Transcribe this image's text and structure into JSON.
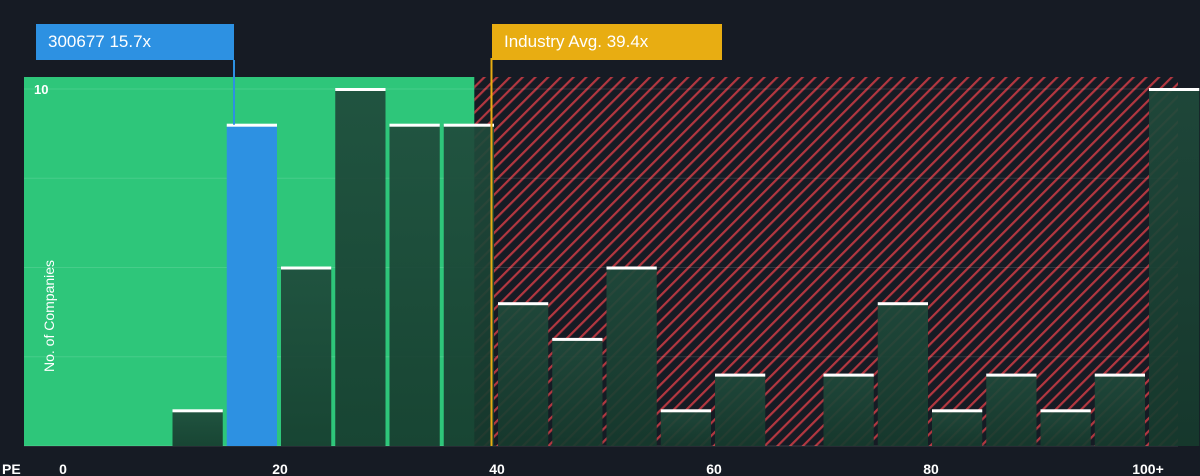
{
  "chart_data": {
    "type": "bar",
    "xlabel": "PE",
    "ylabel": "No. of Companies",
    "x_ticks": [
      "0",
      "20",
      "40",
      "60",
      "80",
      "100+"
    ],
    "x_tick_values": [
      0,
      20,
      40,
      60,
      80,
      100
    ],
    "y_ticks": [
      "10"
    ],
    "y_tick_values": [
      10
    ],
    "ylim": [
      0,
      10
    ],
    "xlim": [
      0,
      102
    ],
    "bin_width": 5,
    "bins": [
      {
        "start": 10,
        "value": 1
      },
      {
        "start": 15,
        "value": 9,
        "highlight": "company"
      },
      {
        "start": 20,
        "value": 5
      },
      {
        "start": 25,
        "value": 10
      },
      {
        "start": 30,
        "value": 9
      },
      {
        "start": 35,
        "value": 9
      },
      {
        "start": 40,
        "value": 4
      },
      {
        "start": 45,
        "value": 3
      },
      {
        "start": 50,
        "value": 5
      },
      {
        "start": 55,
        "value": 1
      },
      {
        "start": 60,
        "value": 2
      },
      {
        "start": 70,
        "value": 2
      },
      {
        "start": 75,
        "value": 4
      },
      {
        "start": 80,
        "value": 1
      },
      {
        "start": 85,
        "value": 2
      },
      {
        "start": 90,
        "value": 1
      },
      {
        "start": 95,
        "value": 2
      },
      {
        "start": 100,
        "value": 10
      }
    ],
    "fair_range_end": 38,
    "company": {
      "label": "300677 15.7x",
      "value": 15.7
    },
    "industry": {
      "label": "Industry Avg. 39.4x",
      "value": 39.4
    },
    "grid": true,
    "colors": {
      "background": "#161b24",
      "fair_zone": "#2ec67a",
      "bar": "#1f4a3b",
      "company_bar": "#2d91e2",
      "over_zone": "#b33740",
      "industry_marker": "#e8ad12",
      "bar_cap": "#ffffff"
    }
  }
}
